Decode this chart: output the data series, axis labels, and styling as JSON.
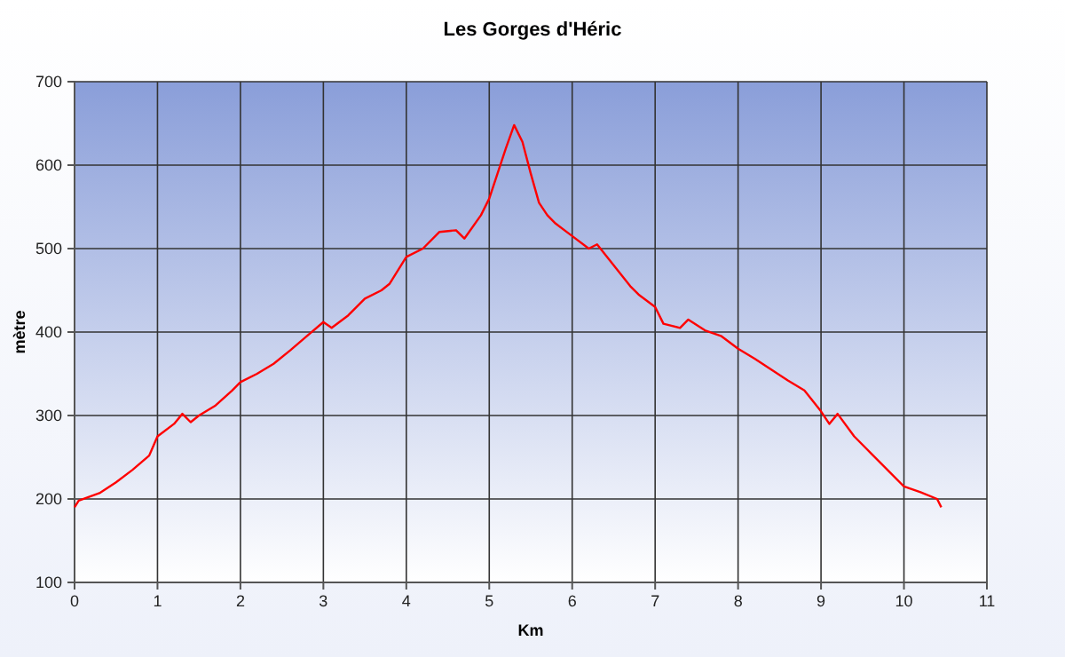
{
  "chart_data": {
    "type": "line",
    "title": "Les Gorges d'Héric",
    "xlabel": "Km",
    "ylabel": "mètre",
    "xlim": [
      0,
      11
    ],
    "xticks": [
      0,
      1,
      2,
      3,
      4,
      5,
      6,
      7,
      8,
      9,
      10,
      11
    ],
    "ylim": [
      100,
      700
    ],
    "yticks": [
      100,
      200,
      300,
      400,
      500,
      600,
      700
    ],
    "grid": true,
    "marker": "none",
    "line_style": "solid",
    "series": [
      {
        "color": "#ff0000",
        "x": [
          0,
          0.05,
          0.3,
          0.5,
          0.7,
          0.9,
          1.0,
          1.2,
          1.3,
          1.4,
          1.5,
          1.7,
          1.9,
          2.0,
          2.2,
          2.4,
          2.6,
          2.8,
          3.0,
          3.1,
          3.3,
          3.5,
          3.7,
          3.8,
          4.0,
          4.2,
          4.4,
          4.6,
          4.7,
          4.9,
          5.0,
          5.1,
          5.2,
          5.3,
          5.4,
          5.5,
          5.6,
          5.7,
          5.8,
          6.0,
          6.2,
          6.3,
          6.5,
          6.7,
          6.8,
          7.0,
          7.1,
          7.3,
          7.4,
          7.6,
          7.8,
          8.0,
          8.2,
          8.4,
          8.6,
          8.8,
          9.0,
          9.1,
          9.2,
          9.4,
          9.6,
          9.8,
          10.0,
          10.2,
          10.4,
          10.45
        ],
        "values": [
          190,
          198,
          207,
          220,
          235,
          252,
          275,
          290,
          302,
          292,
          300,
          312,
          330,
          340,
          350,
          362,
          378,
          395,
          412,
          405,
          420,
          440,
          450,
          458,
          490,
          500,
          520,
          522,
          512,
          540,
          560,
          590,
          620,
          648,
          628,
          590,
          555,
          540,
          530,
          515,
          500,
          505,
          480,
          455,
          445,
          430,
          410,
          405,
          415,
          402,
          395,
          380,
          368,
          355,
          342,
          330,
          305,
          290,
          302,
          275,
          255,
          235,
          215,
          208,
          200,
          190
        ]
      }
    ]
  }
}
